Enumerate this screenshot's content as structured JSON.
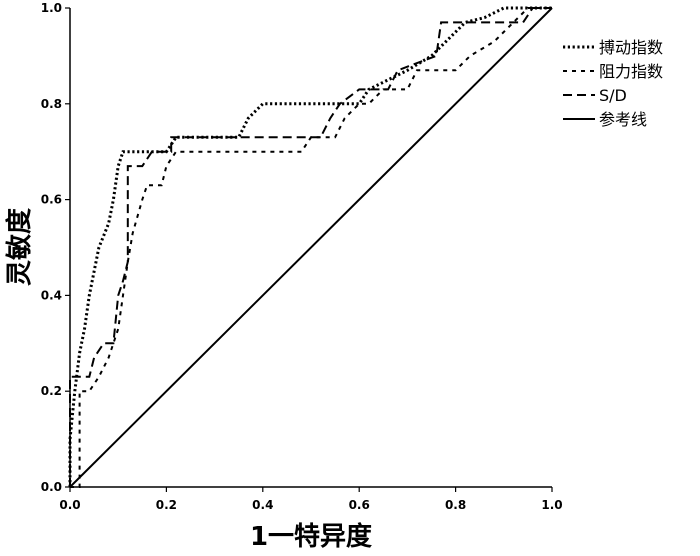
{
  "chart_data": {
    "type": "line",
    "title": "",
    "xlabel": "1一特异度",
    "ylabel": "灵敏度",
    "xlim": [
      0,
      1
    ],
    "ylim": [
      0,
      1
    ],
    "xticks": [
      "0.0",
      "0.2",
      "0.4",
      "0.6",
      "0.8",
      "1.0"
    ],
    "yticks": [
      "0.0",
      "0.2",
      "0.4",
      "0.6",
      "0.8",
      "1.0"
    ],
    "grid": false,
    "legend_position": "right",
    "series": [
      {
        "name": "搏动指数",
        "style": "dotted",
        "points": [
          [
            0,
            0
          ],
          [
            0,
            0.1
          ],
          [
            0.01,
            0.2
          ],
          [
            0.02,
            0.28
          ],
          [
            0.03,
            0.33
          ],
          [
            0.04,
            0.4
          ],
          [
            0.05,
            0.45
          ],
          [
            0.06,
            0.5
          ],
          [
            0.08,
            0.55
          ],
          [
            0.09,
            0.6
          ],
          [
            0.1,
            0.67
          ],
          [
            0.11,
            0.7
          ],
          [
            0.2,
            0.7
          ],
          [
            0.22,
            0.73
          ],
          [
            0.33,
            0.73
          ],
          [
            0.35,
            0.73
          ],
          [
            0.37,
            0.77
          ],
          [
            0.4,
            0.8
          ],
          [
            0.58,
            0.8
          ],
          [
            0.6,
            0.8
          ],
          [
            0.62,
            0.83
          ],
          [
            0.7,
            0.87
          ],
          [
            0.75,
            0.9
          ],
          [
            0.78,
            0.93
          ],
          [
            0.82,
            0.97
          ],
          [
            0.86,
            0.98
          ],
          [
            0.9,
            1.0
          ],
          [
            1.0,
            1.0
          ]
        ]
      },
      {
        "name": "阻力指数",
        "style": "sparse-dashed",
        "points": [
          [
            0,
            0
          ],
          [
            0.02,
            0
          ],
          [
            0.02,
            0.2
          ],
          [
            0.04,
            0.2
          ],
          [
            0.06,
            0.23
          ],
          [
            0.08,
            0.27
          ],
          [
            0.1,
            0.33
          ],
          [
            0.11,
            0.4
          ],
          [
            0.12,
            0.47
          ],
          [
            0.13,
            0.53
          ],
          [
            0.15,
            0.6
          ],
          [
            0.16,
            0.63
          ],
          [
            0.19,
            0.63
          ],
          [
            0.2,
            0.67
          ],
          [
            0.22,
            0.7
          ],
          [
            0.48,
            0.7
          ],
          [
            0.5,
            0.73
          ],
          [
            0.55,
            0.73
          ],
          [
            0.57,
            0.77
          ],
          [
            0.6,
            0.8
          ],
          [
            0.62,
            0.8
          ],
          [
            0.65,
            0.83
          ],
          [
            0.7,
            0.83
          ],
          [
            0.72,
            0.87
          ],
          [
            0.8,
            0.87
          ],
          [
            0.83,
            0.9
          ],
          [
            0.88,
            0.93
          ],
          [
            0.92,
            0.97
          ],
          [
            0.95,
            1.0
          ],
          [
            1.0,
            1.0
          ]
        ]
      },
      {
        "name": "S/D",
        "style": "dashed",
        "points": [
          [
            0,
            0
          ],
          [
            0,
            0.23
          ],
          [
            0.04,
            0.23
          ],
          [
            0.05,
            0.27
          ],
          [
            0.07,
            0.3
          ],
          [
            0.09,
            0.3
          ],
          [
            0.1,
            0.4
          ],
          [
            0.11,
            0.43
          ],
          [
            0.12,
            0.47
          ],
          [
            0.12,
            0.67
          ],
          [
            0.15,
            0.67
          ],
          [
            0.17,
            0.7
          ],
          [
            0.21,
            0.7
          ],
          [
            0.21,
            0.73
          ],
          [
            0.52,
            0.73
          ],
          [
            0.54,
            0.77
          ],
          [
            0.56,
            0.8
          ],
          [
            0.6,
            0.83
          ],
          [
            0.66,
            0.83
          ],
          [
            0.68,
            0.87
          ],
          [
            0.76,
            0.9
          ],
          [
            0.77,
            0.97
          ],
          [
            0.94,
            0.97
          ],
          [
            0.96,
            1.0
          ],
          [
            1.0,
            1.0
          ]
        ]
      },
      {
        "name": "参考线",
        "style": "solid",
        "points": [
          [
            0,
            0
          ],
          [
            1,
            1
          ]
        ]
      }
    ]
  }
}
